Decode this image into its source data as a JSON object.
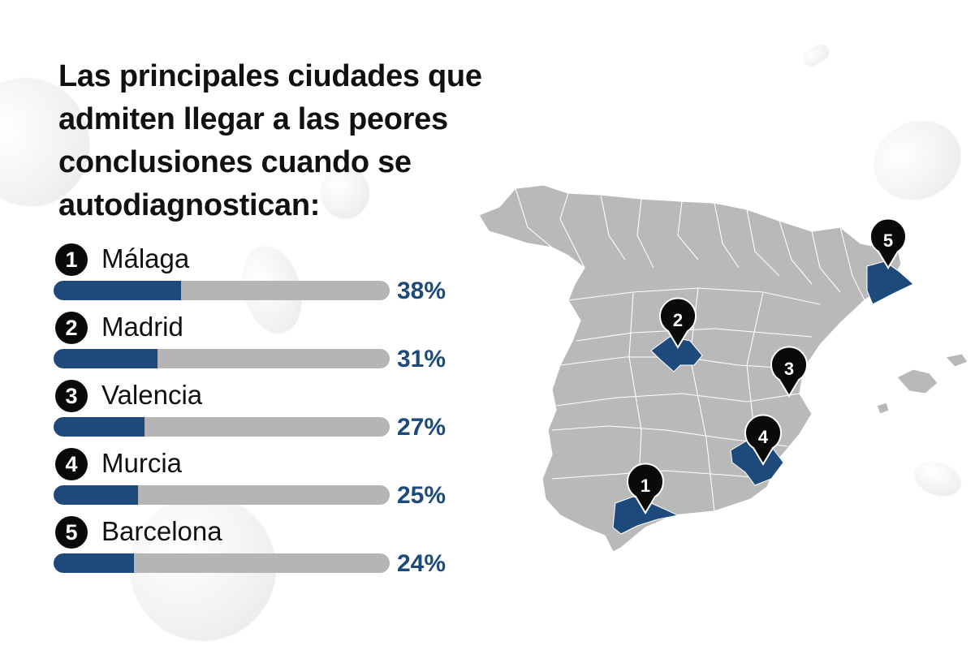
{
  "title": "Las principales ciudades que admiten llegar a las peores conclusiones cuando se autodiagnostican:",
  "chart_data": {
    "type": "bar",
    "orientation": "horizontal",
    "categories": [
      "Málaga",
      "Madrid",
      "Valencia",
      "Murcia",
      "Barcelona"
    ],
    "ranks": [
      "1",
      "2",
      "3",
      "4",
      "5"
    ],
    "values": [
      38,
      31,
      27,
      25,
      24
    ],
    "value_labels": [
      "38%",
      "31%",
      "27%",
      "25%",
      "24%"
    ],
    "unit": "%",
    "xlim": [
      0,
      100
    ]
  },
  "map": {
    "markers": [
      "1",
      "2",
      "3",
      "4",
      "5"
    ]
  },
  "colors": {
    "accent": "#1d4a7a",
    "track": "#b5b5b5",
    "map_land": "#b9b9b9",
    "map_highlight": "#1d4a7a",
    "badge": "#0a0a0a"
  }
}
